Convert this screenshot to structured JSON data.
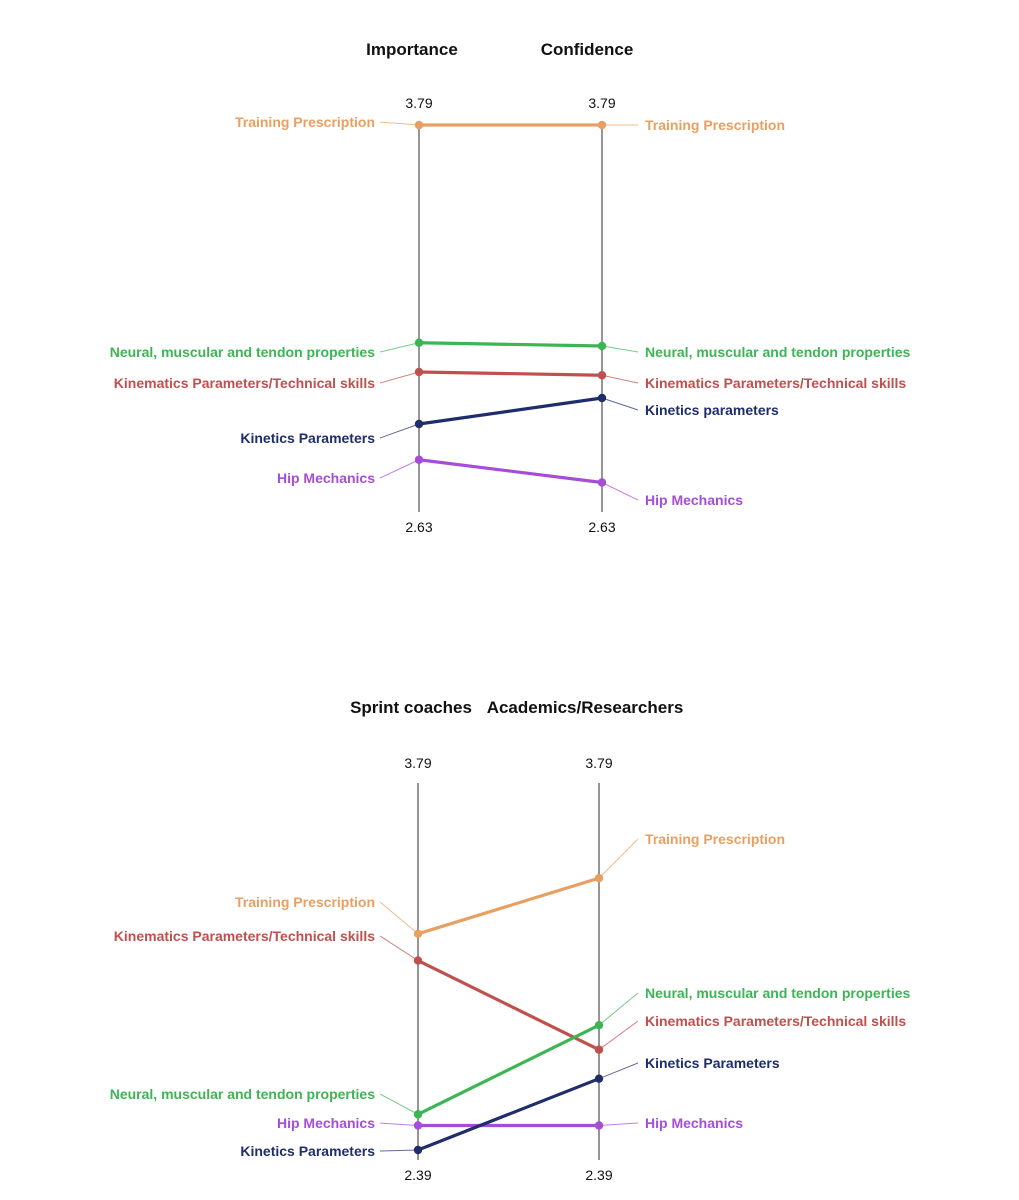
{
  "chart_data": [
    {
      "type": "line",
      "title": "",
      "axes": [
        "Importance",
        "Confidence"
      ],
      "axis_top": "3.79",
      "axis_bottom": "2.63",
      "ylim": [
        2.63,
        3.79
      ],
      "series": [
        {
          "name": "Training Prescription",
          "left_label": "Training Prescription",
          "right_label": "Training Prescription",
          "color": "#e8a062",
          "values": [
            3.79,
            3.79
          ]
        },
        {
          "name": "Neural, muscular and tendon properties",
          "left_label": "Neural, muscular and tendon properties",
          "right_label": "Neural, muscular and tendon properties",
          "color": "#3cb554",
          "values": [
            3.12,
            3.11
          ]
        },
        {
          "name": "Kinematics Parameters/Technical skills",
          "left_label": "Kinematics Parameters/Technical skills",
          "right_label": "Kinematics Parameters/Technical skills",
          "color": "#c0504d",
          "values": [
            3.03,
            3.02
          ]
        },
        {
          "name": "Kinetics Parameters",
          "left_label": "Kinetics Parameters",
          "right_label": "Kinetics parameters",
          "color": "#1f2d6b",
          "values": [
            2.87,
            2.95
          ]
        },
        {
          "name": "Hip Mechanics",
          "left_label": "Hip Mechanics",
          "right_label": "Hip Mechanics",
          "color": "#a64dd8",
          "values": [
            2.76,
            2.69
          ]
        }
      ]
    },
    {
      "type": "line",
      "title": "",
      "axes": [
        "Sprint coaches",
        "Academics/Researchers"
      ],
      "axis_top": "3.79",
      "axis_bottom": "2.39",
      "ylim": [
        2.39,
        3.79
      ],
      "series": [
        {
          "name": "Training Prescription",
          "left_label": "Training Prescription",
          "right_label": "Training Prescription",
          "color": "#e8a062",
          "values": [
            3.36,
            3.61
          ]
        },
        {
          "name": "Kinematics Parameters/Technical skills",
          "left_label": "Kinematics Parameters/Technical skills",
          "right_label": "Kinematics Parameters/Technical skills",
          "color": "#c0504d",
          "values": [
            3.24,
            2.84
          ]
        },
        {
          "name": "Neural, muscular and tendon properties",
          "left_label": "Neural, muscular and tendon properties",
          "right_label": "Neural, muscular and tendon properties",
          "color": "#3cb554",
          "values": [
            2.55,
            2.95
          ]
        },
        {
          "name": "Hip Mechanics",
          "left_label": "Hip Mechanics",
          "right_label": "Hip Mechanics",
          "color": "#a64dd8",
          "values": [
            2.5,
            2.5
          ]
        },
        {
          "name": "Kinetics Parameters",
          "left_label": "Kinetics Parameters",
          "right_label": "Kinetics Parameters",
          "color": "#1f2d6b",
          "values": [
            2.39,
            2.71
          ]
        }
      ]
    }
  ]
}
